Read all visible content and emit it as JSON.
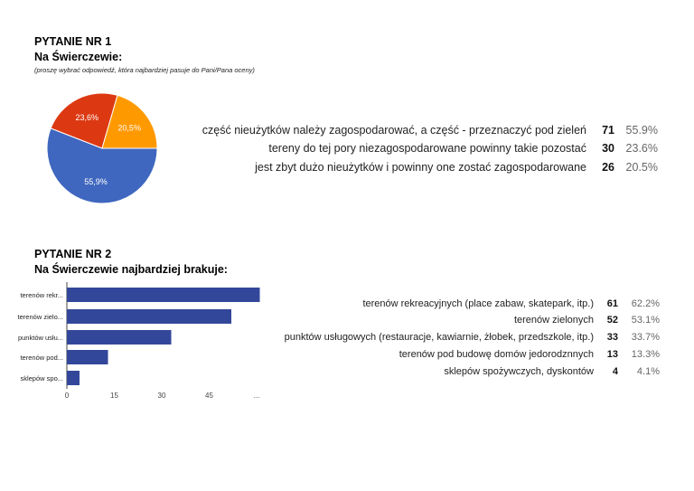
{
  "q1": {
    "title": "PYTANIE NR 1",
    "subtitle": "Na Świerczewie:",
    "note": "(proszę wybrać odpowiedź, która najbardziej pasuje do Pani/Pana oceny)"
  },
  "q2": {
    "title": "PYTANIE NR 2",
    "subtitle": "Na Świerczewie najbardziej brakuje:"
  },
  "chart_data": [
    {
      "type": "pie",
      "slices": [
        {
          "label": "część nieużytków należy zagospodarować, a część - przeznaczyć pod zieleń",
          "count": "71",
          "percent": "55.9%",
          "value": 55.9,
          "slice_label": "55,9%",
          "color": "#3f67bf"
        },
        {
          "label": "tereny do tej pory niezagospodarowane powinny takie pozostać",
          "count": "30",
          "percent": "23.6%",
          "value": 23.6,
          "slice_label": "23,6%",
          "color": "#dc3912"
        },
        {
          "label": "jest zbyt dużo nieużytków i powinny one zostać zagospodarowane",
          "count": "26",
          "percent": "20.5%",
          "value": 20.5,
          "slice_label": "20,5%",
          "color": "#ff9900"
        }
      ]
    },
    {
      "type": "bar",
      "orientation": "horizontal",
      "color": "#33479a",
      "categories": [
        "terenów rekr...",
        "terenów zielo...",
        "punktów usłu...",
        "terenów pod...",
        "sklepów spo..."
      ],
      "values": [
        61,
        52,
        33,
        13,
        4
      ],
      "x_ticks": [
        "0",
        "15",
        "30",
        "45",
        "..."
      ],
      "xlim": [
        0,
        60
      ],
      "legend": [
        {
          "label": "terenów rekreacyjnych (place zabaw, skatepark, itp.)",
          "count": "61",
          "percent": "62.2%"
        },
        {
          "label": "terenów zielonych",
          "count": "52",
          "percent": "53.1%"
        },
        {
          "label": "punktów usługowych (restauracje, kawiarnie, żłobek, przedszkole, itp.)",
          "count": "33",
          "percent": "33.7%"
        },
        {
          "label": "terenów pod budowę domów jedorodznnych",
          "count": "13",
          "percent": "13.3%"
        },
        {
          "label": "sklepów spożywczych, dyskontów",
          "count": "4",
          "percent": "4.1%"
        }
      ]
    }
  ]
}
